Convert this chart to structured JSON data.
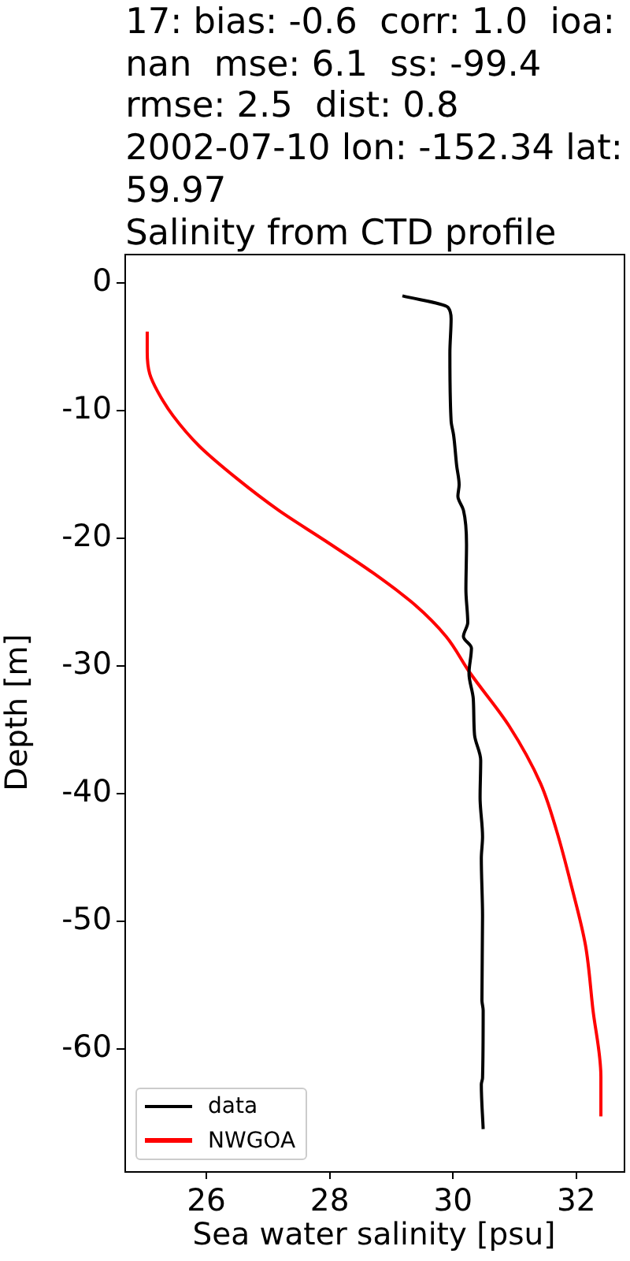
{
  "chart_data": {
    "type": "line",
    "title": "17: bias: -0.6  corr: 1.0  ioa:\nnan  mse: 6.1  ss: -99.4\nrmse: 2.5  dist: 0.8\n2002-07-10 lon: -152.34 lat:\n59.97\nSalinity from CTD profile",
    "xlabel": "Sea water salinity [psu]",
    "ylabel": "Depth [m]",
    "xlim": [
      24.67,
      32.77
    ],
    "ylim": [
      -69.6,
      2.3
    ],
    "xticks": [
      26,
      28,
      30,
      32
    ],
    "yticks": [
      -60,
      -50,
      -40,
      -30,
      -20,
      -10,
      0
    ],
    "legend": "bottom left",
    "series": [
      {
        "name": "data",
        "color": "#000000",
        "x": [
          29.18,
          29.92,
          29.97,
          29.95,
          29.97,
          30.01,
          30.06,
          30.1,
          30.08,
          30.17,
          30.22,
          30.21,
          30.24,
          30.17,
          30.3,
          30.26,
          30.33,
          30.35,
          30.45,
          30.44,
          30.48,
          30.46,
          30.48,
          30.47,
          30.49,
          30.48,
          30.46,
          30.49
        ],
        "values": [
          -1.0,
          -1.9,
          -2.8,
          -5.5,
          -10.8,
          -11.9,
          -14.3,
          -15.8,
          -16.7,
          -17.8,
          -20.5,
          -24.0,
          -26.6,
          -27.7,
          -28.6,
          -30.6,
          -32.6,
          -35.4,
          -37.4,
          -40.3,
          -43.4,
          -45.1,
          -49.6,
          -56.2,
          -57.0,
          -62.3,
          -62.8,
          -66.3
        ]
      },
      {
        "name": "NWGOA",
        "color": "#ff0000",
        "x": [
          25.04,
          25.04,
          25.08,
          25.21,
          25.46,
          25.89,
          26.49,
          27.17,
          27.93,
          28.7,
          29.38,
          29.89,
          30.27,
          30.91,
          31.42,
          31.68,
          31.93,
          32.15,
          32.27,
          32.4,
          32.4
        ],
        "values": [
          -3.8,
          -5.4,
          -7.1,
          -8.5,
          -10.4,
          -12.8,
          -15.3,
          -17.8,
          -20.2,
          -22.7,
          -25.2,
          -27.7,
          -30.5,
          -34.7,
          -39.2,
          -42.9,
          -47.4,
          -51.9,
          -56.9,
          -62.2,
          -65.3
        ]
      }
    ]
  }
}
